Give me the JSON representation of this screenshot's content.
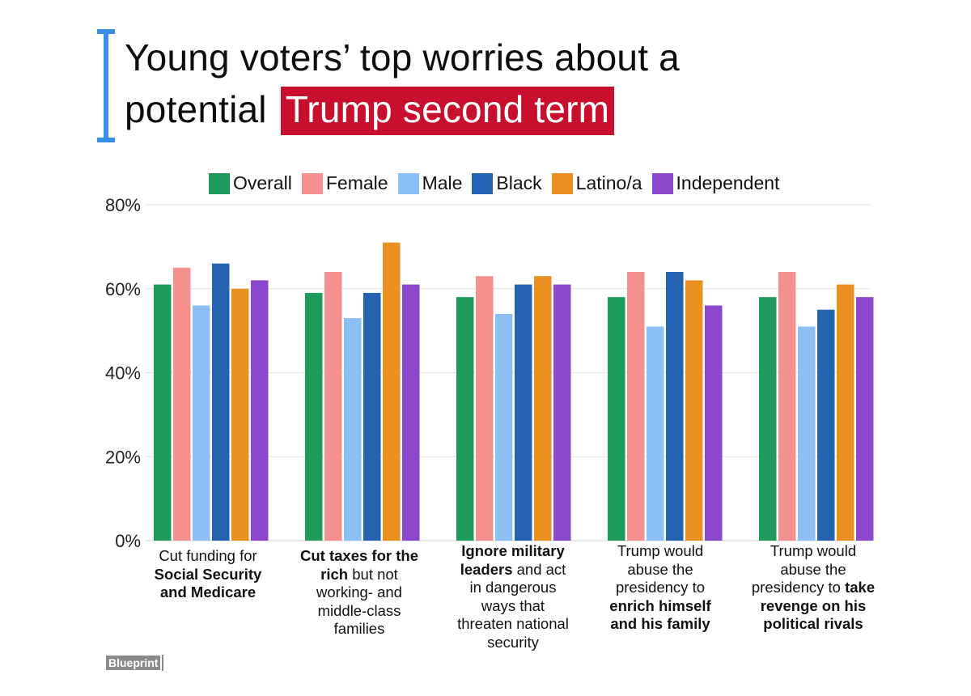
{
  "title": {
    "line1": "Young voters’ top worries about a",
    "line2_prefix": "potential",
    "line2_highlight": "Trump second term"
  },
  "colors": {
    "accent_red": "#c8102e",
    "bracket_blue": "#3a8ee6",
    "grid": "#e3e3e3"
  },
  "logo": {
    "text": "Blueprint"
  },
  "chart_data": {
    "type": "bar",
    "title": "Young voters’ top worries about a potential Trump second term",
    "xlabel": "",
    "ylabel": "",
    "ylim": [
      0,
      80
    ],
    "y_ticks": [
      0,
      20,
      40,
      60,
      80
    ],
    "y_tick_labels": [
      "0%",
      "20%",
      "40%",
      "60%",
      "80%"
    ],
    "grid": true,
    "legend_position": "top",
    "categories": [
      "Cut funding for Social Security and Medicare",
      "Cut taxes for the rich but not working- and middle-class families",
      "Ignore military leaders and act in dangerous ways that threaten national security",
      "Trump would abuse the presidency to enrich himself and his family",
      "Trump would abuse the presidency to take revenge on his political rivals"
    ],
    "category_labels": [
      [
        {
          "t": "Cut funding for",
          "b": false
        },
        {
          "t": "Social Security",
          "b": true
        },
        {
          "t": "and Medicare",
          "b": true
        }
      ],
      [
        {
          "t": "Cut taxes for the",
          "b": true
        },
        {
          "t": "rich",
          "b": true,
          "rest": " but not"
        },
        {
          "t": "working- and",
          "b": false
        },
        {
          "t": "middle-class",
          "b": false
        },
        {
          "t": "families",
          "b": false
        }
      ],
      [
        {
          "t": "Ignore military",
          "b": true
        },
        {
          "t": "leaders",
          "b": true,
          "rest": " and act"
        },
        {
          "t": "in dangerous",
          "b": false
        },
        {
          "t": "ways that",
          "b": false
        },
        {
          "t": "threaten national",
          "b": false
        },
        {
          "t": "security",
          "b": false
        }
      ],
      [
        {
          "t": "Trump would",
          "b": false
        },
        {
          "t": "abuse the",
          "b": false
        },
        {
          "t": "presidency to",
          "b": false
        },
        {
          "t": "enrich himself",
          "b": true
        },
        {
          "t": "and his family",
          "b": true
        }
      ],
      [
        {
          "t": "Trump would",
          "b": false
        },
        {
          "t": "abuse the",
          "b": false
        },
        {
          "t": "presidency to",
          "b": false,
          "bold_rest": " take"
        },
        {
          "t": "revenge on his",
          "b": true
        },
        {
          "t": "political rivals",
          "b": true
        }
      ]
    ],
    "series": [
      {
        "name": "Overall",
        "color": "#1e9b5a",
        "values": [
          61,
          59,
          58,
          58,
          58
        ]
      },
      {
        "name": "Female",
        "color": "#f4908e",
        "values": [
          65,
          64,
          63,
          64,
          64
        ]
      },
      {
        "name": "Male",
        "color": "#8cc0f5",
        "values": [
          56,
          53,
          54,
          51,
          51
        ]
      },
      {
        "name": "Black",
        "color": "#2563b0",
        "values": [
          66,
          59,
          61,
          64,
          55
        ]
      },
      {
        "name": "Latino/a",
        "color": "#ea9020",
        "values": [
          60,
          71,
          63,
          62,
          61
        ]
      },
      {
        "name": "Independent",
        "color": "#8c47cc",
        "values": [
          62,
          61,
          61,
          56,
          58
        ]
      }
    ]
  }
}
